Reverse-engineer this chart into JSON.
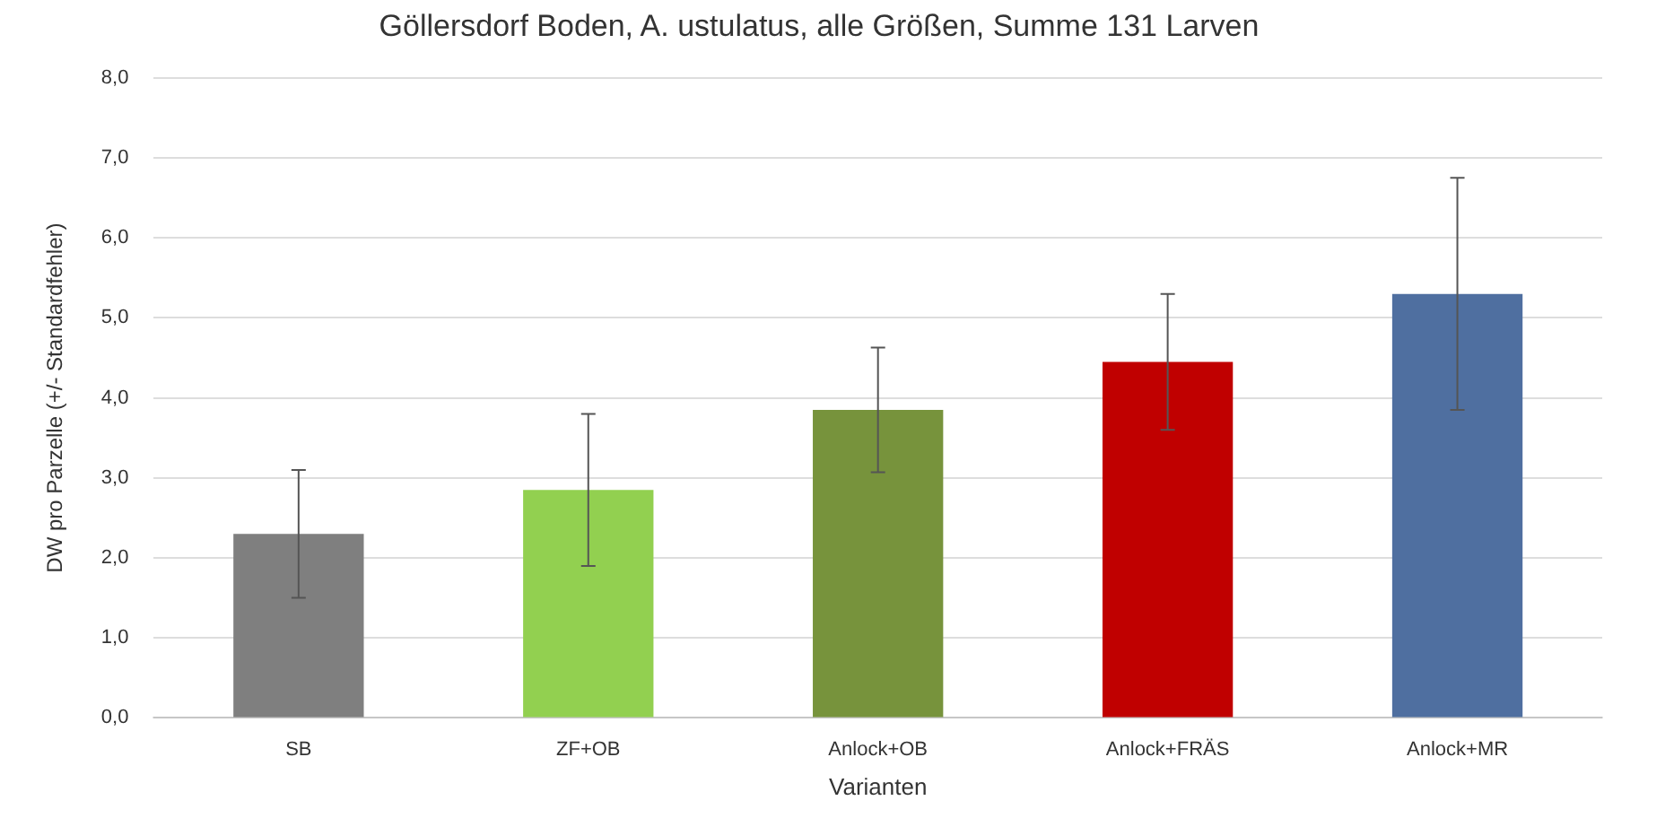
{
  "chart_data": {
    "type": "bar",
    "title": "Göllersdorf Boden, A. ustulatus, alle Größen, Summe 131 Larven",
    "xlabel": "Varianten",
    "ylabel": "DW pro Parzelle (+/- Standardfehler)",
    "categories": [
      "SB",
      "ZF+OB",
      "Anlock+OB",
      "Anlock+FRÄS",
      "Anlock+MR"
    ],
    "values": [
      2.3,
      2.85,
      3.85,
      4.45,
      5.3
    ],
    "errors": [
      0.8,
      0.95,
      0.78,
      0.85,
      1.45
    ],
    "colors": [
      "#7f7f7f",
      "#92d050",
      "#77933c",
      "#c00000",
      "#4f6fa0"
    ],
    "ylim": [
      0,
      8
    ],
    "yticks": [
      {
        "value": 0,
        "label": "0,0"
      },
      {
        "value": 1,
        "label": "1,0"
      },
      {
        "value": 2,
        "label": "2,0"
      },
      {
        "value": 3,
        "label": "3,0"
      },
      {
        "value": 4,
        "label": "4,0"
      },
      {
        "value": 5,
        "label": "5,0"
      },
      {
        "value": 6,
        "label": "6,0"
      },
      {
        "value": 7,
        "label": "7,0"
      },
      {
        "value": 8,
        "label": "8,0"
      }
    ],
    "grid": "y",
    "legend": false
  }
}
